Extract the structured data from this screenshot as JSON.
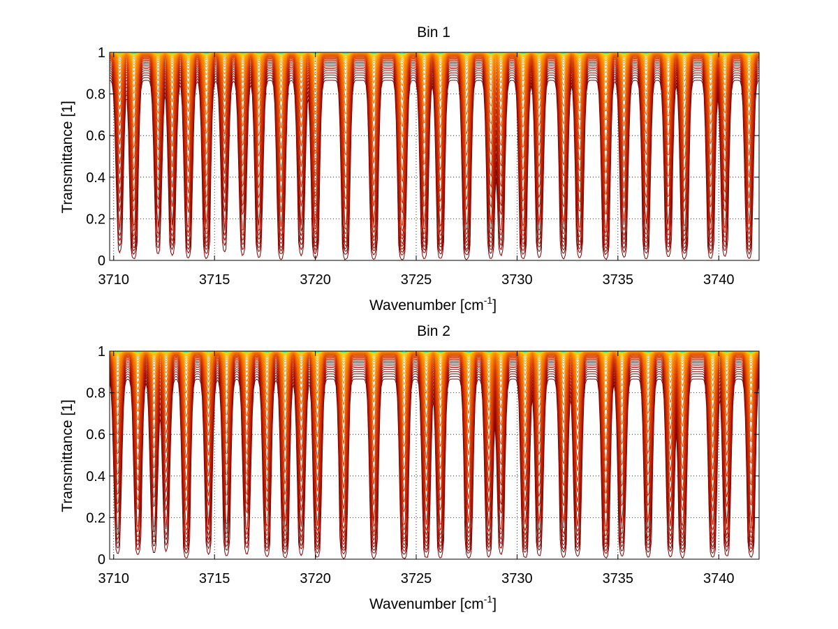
{
  "chart_data": [
    {
      "type": "line",
      "title": "Bin 1",
      "xlabel": "Wavenumber [cm",
      "xlabel_sup": "-1",
      "xlabel_end": "]",
      "ylabel": "Transmittance [1]",
      "xlim": [
        3709.8,
        3742
      ],
      "ylim": [
        0,
        1
      ],
      "xticks": [
        3710,
        3715,
        3720,
        3725,
        3730,
        3735,
        3740
      ],
      "yticks": [
        0,
        0.2,
        0.4,
        0.6,
        0.8,
        1
      ],
      "xtick_labels": [
        "3710",
        "3715",
        "3720",
        "3725",
        "3730",
        "3735",
        "3740"
      ],
      "ytick_labels": [
        "0",
        "0.2",
        "0.4",
        "0.6",
        "0.8",
        "1"
      ],
      "grid": "dotted",
      "line_count": 48,
      "colormap": [
        "#800000",
        "#b01800",
        "#d83a00",
        "#f07000",
        "#ff9800",
        "#ffd000",
        "#c8f000",
        "#40e8a0"
      ],
      "absorption_lines": [
        {
          "x": 3710.3,
          "depth": 0.5
        },
        {
          "x": 3711.0,
          "depth": 0.85
        },
        {
          "x": 3712.2,
          "depth": 0.55
        },
        {
          "x": 3712.9,
          "depth": 0.6
        },
        {
          "x": 3713.7,
          "depth": 0.75
        },
        {
          "x": 3714.6,
          "depth": 0.8
        },
        {
          "x": 3715.5,
          "depth": 0.5
        },
        {
          "x": 3716.4,
          "depth": 0.6
        },
        {
          "x": 3717.2,
          "depth": 0.7
        },
        {
          "x": 3718.3,
          "depth": 0.85
        },
        {
          "x": 3719.3,
          "depth": 0.6
        },
        {
          "x": 3720.0,
          "depth": 0.8
        },
        {
          "x": 3721.5,
          "depth": 0.95
        },
        {
          "x": 3722.9,
          "depth": 0.9
        },
        {
          "x": 3724.3,
          "depth": 1.0
        },
        {
          "x": 3725.4,
          "depth": 0.8
        },
        {
          "x": 3726.2,
          "depth": 0.85
        },
        {
          "x": 3727.5,
          "depth": 0.95
        },
        {
          "x": 3728.7,
          "depth": 0.8
        },
        {
          "x": 3729.2,
          "depth": 0.6
        },
        {
          "x": 3730.3,
          "depth": 0.85
        },
        {
          "x": 3731.1,
          "depth": 0.7
        },
        {
          "x": 3732.3,
          "depth": 0.8
        },
        {
          "x": 3733.1,
          "depth": 0.75
        },
        {
          "x": 3734.4,
          "depth": 0.9
        },
        {
          "x": 3735.3,
          "depth": 0.7
        },
        {
          "x": 3736.4,
          "depth": 0.8
        },
        {
          "x": 3737.5,
          "depth": 0.7
        },
        {
          "x": 3738.3,
          "depth": 0.85
        },
        {
          "x": 3739.6,
          "depth": 0.8
        },
        {
          "x": 3740.3,
          "depth": 0.65
        },
        {
          "x": 3741.5,
          "depth": 0.8
        }
      ]
    },
    {
      "type": "line",
      "title": "Bin 2",
      "xlabel": "Wavenumber [cm",
      "xlabel_sup": "-1",
      "xlabel_end": "]",
      "ylabel": "Transmittance [1]",
      "xlim": [
        3709.8,
        3742
      ],
      "ylim": [
        0,
        1
      ],
      "xticks": [
        3710,
        3715,
        3720,
        3725,
        3730,
        3735,
        3740
      ],
      "yticks": [
        0,
        0.2,
        0.4,
        0.6,
        0.8,
        1
      ],
      "xtick_labels": [
        "3710",
        "3715",
        "3720",
        "3725",
        "3730",
        "3735",
        "3740"
      ],
      "ytick_labels": [
        "0",
        "0.2",
        "0.4",
        "0.6",
        "0.8",
        "1"
      ],
      "grid": "dotted",
      "line_count": 48,
      "colormap": [
        "#800000",
        "#b01800",
        "#d83a00",
        "#f07000",
        "#ff9800",
        "#ffd000",
        "#c8f000",
        "#40e8a0"
      ],
      "absorption_lines": [
        {
          "x": 3710.2,
          "depth": 0.6
        },
        {
          "x": 3711.2,
          "depth": 0.65
        },
        {
          "x": 3712.0,
          "depth": 0.55
        },
        {
          "x": 3712.6,
          "depth": 0.5
        },
        {
          "x": 3713.6,
          "depth": 0.85
        },
        {
          "x": 3714.7,
          "depth": 0.6
        },
        {
          "x": 3715.6,
          "depth": 0.7
        },
        {
          "x": 3716.6,
          "depth": 0.6
        },
        {
          "x": 3717.6,
          "depth": 0.75
        },
        {
          "x": 3718.5,
          "depth": 0.9
        },
        {
          "x": 3719.3,
          "depth": 0.65
        },
        {
          "x": 3720.1,
          "depth": 0.85
        },
        {
          "x": 3721.4,
          "depth": 0.95
        },
        {
          "x": 3722.9,
          "depth": 0.9
        },
        {
          "x": 3724.4,
          "depth": 1.0
        },
        {
          "x": 3725.5,
          "depth": 0.85
        },
        {
          "x": 3726.2,
          "depth": 0.85
        },
        {
          "x": 3727.6,
          "depth": 0.95
        },
        {
          "x": 3728.6,
          "depth": 0.75
        },
        {
          "x": 3729.2,
          "depth": 0.6
        },
        {
          "x": 3730.4,
          "depth": 0.85
        },
        {
          "x": 3731.1,
          "depth": 0.7
        },
        {
          "x": 3732.3,
          "depth": 0.8
        },
        {
          "x": 3733.0,
          "depth": 0.75
        },
        {
          "x": 3734.4,
          "depth": 0.9
        },
        {
          "x": 3735.2,
          "depth": 0.7
        },
        {
          "x": 3736.5,
          "depth": 0.8
        },
        {
          "x": 3737.6,
          "depth": 0.75
        },
        {
          "x": 3738.2,
          "depth": 0.85
        },
        {
          "x": 3739.7,
          "depth": 0.85
        },
        {
          "x": 3740.4,
          "depth": 0.7
        },
        {
          "x": 3741.6,
          "depth": 0.8
        }
      ]
    }
  ]
}
